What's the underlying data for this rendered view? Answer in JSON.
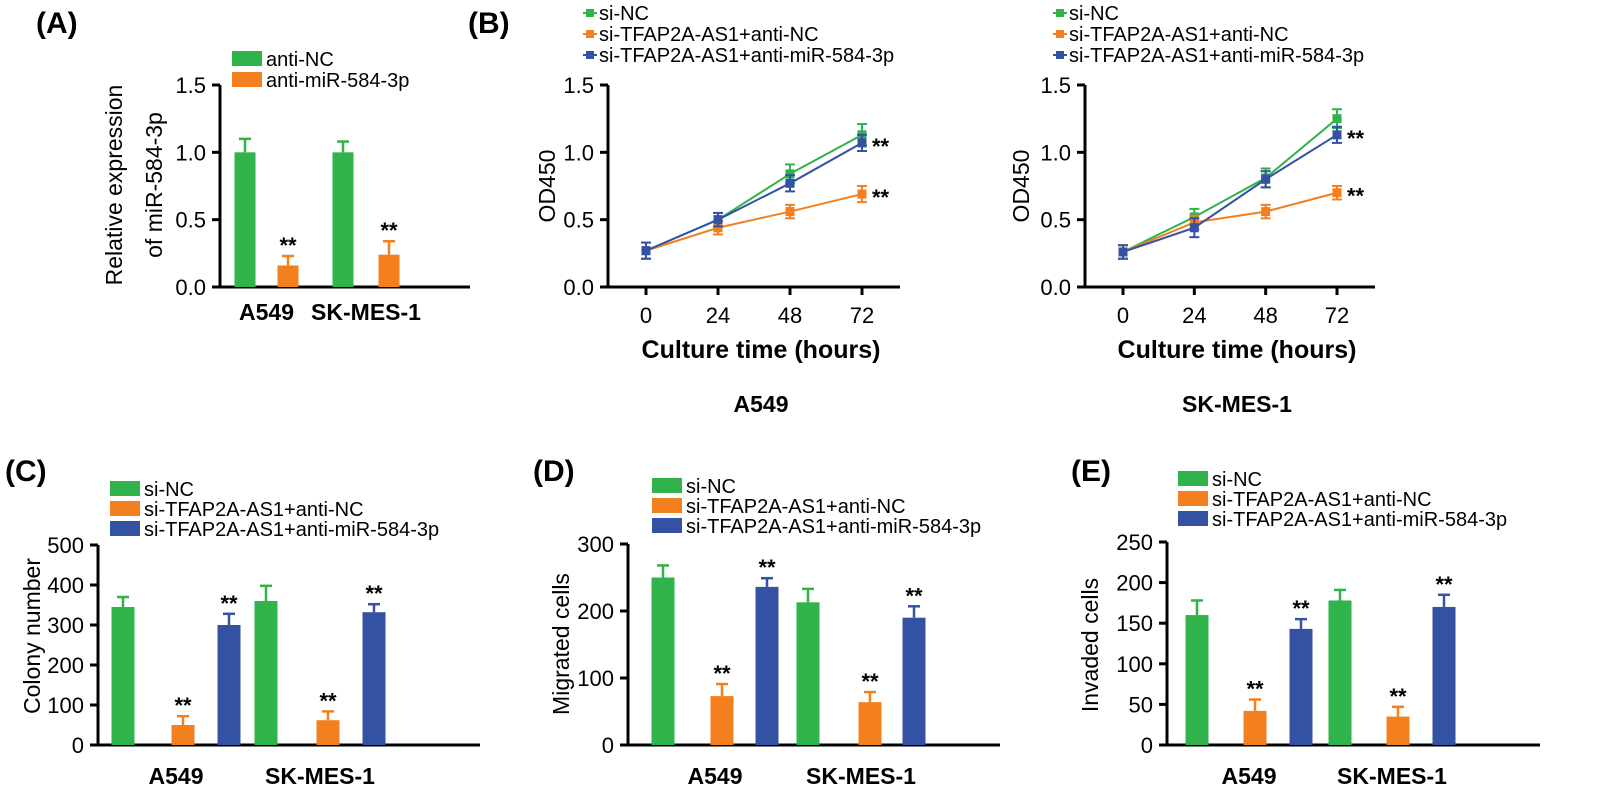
{
  "colors": {
    "green": "#2fb34a",
    "orange": "#f37f1f",
    "blue": "#3452a4"
  },
  "chart_data": [
    {
      "id": "A",
      "label": "(A)",
      "type": "bar",
      "ylabel": [
        "Relative expression",
        "of miR-584-3p"
      ],
      "ylim": [
        0,
        1.5
      ],
      "yticks": [
        "0.0",
        "0.5",
        "1.0",
        "1.5"
      ],
      "categories": [
        "A549",
        "SK-MES-1"
      ],
      "series": [
        {
          "name": "anti-NC",
          "color": "green",
          "values": [
            1.0,
            1.0
          ],
          "errors": [
            0.1,
            0.08
          ],
          "stars": [
            "",
            ""
          ]
        },
        {
          "name": "anti-miR-584-3p",
          "color": "orange",
          "values": [
            0.16,
            0.24
          ],
          "errors": [
            0.07,
            0.1
          ],
          "stars": [
            "**",
            "**"
          ]
        }
      ]
    },
    {
      "id": "B1",
      "label": "(B)",
      "type": "line",
      "ylabel": "OD450",
      "xlabel": "Culture time (hours)",
      "subtitle": "A549",
      "ylim": [
        0,
        1.5
      ],
      "yticks": [
        "0.0",
        "0.5",
        "1.0",
        "1.5"
      ],
      "x": [
        0,
        24,
        48,
        72
      ],
      "xticks": [
        "0",
        "24",
        "48",
        "72"
      ],
      "series": [
        {
          "name": "si-NC",
          "color": "green",
          "values": [
            0.27,
            0.5,
            0.84,
            1.13
          ],
          "errors": [
            0.06,
            0.05,
            0.07,
            0.08
          ],
          "star": ""
        },
        {
          "name": "si-TFAP2A-AS1+anti-NC",
          "color": "orange",
          "values": [
            0.27,
            0.44,
            0.56,
            0.69
          ],
          "errors": [
            0.06,
            0.05,
            0.05,
            0.06
          ],
          "star": "**"
        },
        {
          "name": "si-TFAP2A-AS1+anti-miR-584-3p",
          "color": "blue",
          "values": [
            0.27,
            0.5,
            0.77,
            1.07
          ],
          "errors": [
            0.06,
            0.05,
            0.06,
            0.06
          ],
          "star": "**"
        }
      ]
    },
    {
      "id": "B2",
      "label": "",
      "type": "line",
      "ylabel": "OD450",
      "xlabel": "Culture time (hours)",
      "subtitle": "SK-MES-1",
      "ylim": [
        0,
        1.5
      ],
      "yticks": [
        "0.0",
        "0.5",
        "1.0",
        "1.5"
      ],
      "x": [
        0,
        24,
        48,
        72
      ],
      "xticks": [
        "0",
        "24",
        "48",
        "72"
      ],
      "series": [
        {
          "name": "si-NC",
          "color": "green",
          "values": [
            0.26,
            0.52,
            0.81,
            1.25
          ],
          "errors": [
            0.05,
            0.06,
            0.07,
            0.07
          ],
          "star": ""
        },
        {
          "name": "si-TFAP2A-AS1+anti-NC",
          "color": "orange",
          "values": [
            0.26,
            0.48,
            0.56,
            0.7
          ],
          "errors": [
            0.05,
            0.05,
            0.05,
            0.05
          ],
          "star": "**"
        },
        {
          "name": "si-TFAP2A-AS1+anti-miR-584-3p",
          "color": "blue",
          "values": [
            0.26,
            0.44,
            0.8,
            1.13
          ],
          "errors": [
            0.05,
            0.07,
            0.06,
            0.06
          ],
          "star": "**"
        }
      ]
    },
    {
      "id": "C",
      "label": "(C)",
      "type": "bar",
      "ylabel": "Colony number",
      "ylim": [
        0,
        500
      ],
      "yticks": [
        "0",
        "100",
        "200",
        "300",
        "400",
        "500"
      ],
      "categories": [
        "A549",
        "SK-MES-1"
      ],
      "series": [
        {
          "name": "si-NC",
          "color": "green",
          "values": [
            345,
            360
          ],
          "errors": [
            25,
            38
          ],
          "stars": [
            "",
            ""
          ]
        },
        {
          "name": "si-TFAP2A-AS1+anti-NC",
          "color": "orange",
          "values": [
            50,
            62
          ],
          "errors": [
            22,
            22
          ],
          "stars": [
            "**",
            "**"
          ]
        },
        {
          "name": "si-TFAP2A-AS1+anti-miR-584-3p",
          "color": "blue",
          "values": [
            300,
            332
          ],
          "errors": [
            28,
            20
          ],
          "stars": [
            "**",
            "**"
          ]
        }
      ]
    },
    {
      "id": "D",
      "label": "(D)",
      "type": "bar",
      "ylabel": "Migrated cells",
      "ylim": [
        0,
        300
      ],
      "yticks": [
        "0",
        "100",
        "200",
        "300"
      ],
      "categories": [
        "A549",
        "SK-MES-1"
      ],
      "series": [
        {
          "name": "si-NC",
          "color": "green",
          "values": [
            250,
            213
          ],
          "errors": [
            18,
            20
          ],
          "stars": [
            "",
            ""
          ]
        },
        {
          "name": "si-TFAP2A-AS1+anti-NC",
          "color": "orange",
          "values": [
            73,
            64
          ],
          "errors": [
            18,
            15
          ],
          "stars": [
            "**",
            "**"
          ]
        },
        {
          "name": "si-TFAP2A-AS1+anti-miR-584-3p",
          "color": "blue",
          "values": [
            236,
            190
          ],
          "errors": [
            13,
            17
          ],
          "stars": [
            "**",
            "**"
          ]
        }
      ]
    },
    {
      "id": "E",
      "label": "(E)",
      "type": "bar",
      "ylabel": "Invaded cells",
      "ylim": [
        0,
        250
      ],
      "yticks": [
        "0",
        "50",
        "100",
        "150",
        "200",
        "250"
      ],
      "categories": [
        "A549",
        "SK-MES-1"
      ],
      "series": [
        {
          "name": "si-NC",
          "color": "green",
          "values": [
            160,
            178
          ],
          "errors": [
            18,
            13
          ],
          "stars": [
            "",
            ""
          ]
        },
        {
          "name": "si-TFAP2A-AS1+anti-NC",
          "color": "orange",
          "values": [
            42,
            35
          ],
          "errors": [
            14,
            12
          ],
          "stars": [
            "**",
            "**"
          ]
        },
        {
          "name": "si-TFAP2A-AS1+anti-miR-584-3p",
          "color": "blue",
          "values": [
            143,
            170
          ],
          "errors": [
            12,
            15
          ],
          "stars": [
            "**",
            "**"
          ]
        }
      ]
    }
  ]
}
